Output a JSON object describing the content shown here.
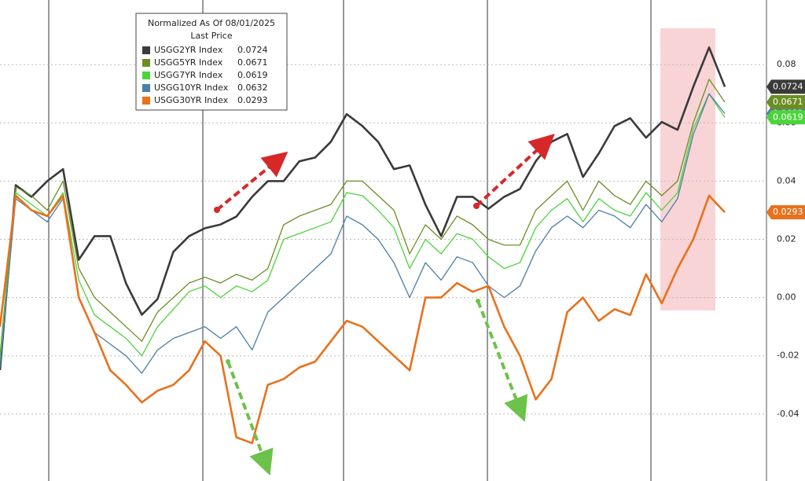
{
  "chart_data": {
    "type": "line",
    "legend_title": "Normalized As Of 08/01/2025",
    "legend_subtitle": "Last Price",
    "ylim": [
      -0.063,
      0.1022
    ],
    "yticks": [
      0.08,
      0.06,
      0.04,
      0.02,
      {
        "value": 0,
        "label": "0.00"
      },
      -0.02,
      -0.04
    ],
    "grid": true,
    "series": [
      {
        "name": "USGG2YR Index",
        "color": "#3a3a3a",
        "last_price": 0.0724,
        "values": [
          -0.0249,
          0.0386,
          0.0346,
          0.04,
          0.0441,
          0.013,
          0.0211,
          0.0211,
          0.0049,
          -0.0059,
          -0.0005,
          0.0157,
          0.0211,
          0.0238,
          0.0251,
          0.0278,
          0.0346,
          0.04,
          0.04,
          0.0468,
          0.0481,
          0.0535,
          0.063,
          0.0589,
          0.0535,
          0.0441,
          0.0454,
          0.0319,
          0.0211,
          0.0346,
          0.0346,
          0.0305,
          0.0346,
          0.0373,
          0.0468,
          0.0535,
          0.0562,
          0.0414,
          0.0495,
          0.0589,
          0.0616,
          0.0549,
          0.0603,
          0.0576,
          0.0724,
          0.0859,
          0.0724
        ]
      },
      {
        "name": "USGG5YR Index",
        "color": "#6b8e23",
        "last_price": 0.0671,
        "values": [
          -0.02,
          0.038,
          0.035,
          0.03,
          0.04,
          0.01,
          0,
          -0.005,
          -0.01,
          -0.015,
          -0.005,
          0,
          0.005,
          0.007,
          0.005,
          0.008,
          0.006,
          0.01,
          0.025,
          0.028,
          0.03,
          0.032,
          0.04,
          0.04,
          0.035,
          0.03,
          0.015,
          0.025,
          0.02,
          0.028,
          0.025,
          0.02,
          0.018,
          0.018,
          0.03,
          0.035,
          0.04,
          0.03,
          0.04,
          0.035,
          0.032,
          0.04,
          0.035,
          0.04,
          0.06,
          0.075,
          0.0671
        ]
      },
      {
        "name": "USGG7YR Index",
        "color": "#4cd43c",
        "last_price": 0.0619,
        "values": [
          -0.022,
          0.036,
          0.032,
          0.028,
          0.036,
          0.006,
          -0.006,
          -0.01,
          -0.014,
          -0.02,
          -0.01,
          -0.004,
          0.002,
          0.004,
          0,
          0.004,
          0.002,
          0.006,
          0.02,
          0.022,
          0.024,
          0.026,
          0.036,
          0.035,
          0.03,
          0.024,
          0.01,
          0.02,
          0.015,
          0.022,
          0.02,
          0.014,
          0.01,
          0.012,
          0.024,
          0.03,
          0.034,
          0.026,
          0.034,
          0.03,
          0.028,
          0.036,
          0.03,
          0.036,
          0.058,
          0.07,
          0.0619
        ]
      },
      {
        "name": "USGG10YR Index",
        "color": "#4a7fa8",
        "last_price": 0.0632,
        "values": [
          -0.024,
          0.034,
          0.03,
          0.026,
          0.034,
          0,
          -0.012,
          -0.016,
          -0.02,
          -0.026,
          -0.018,
          -0.014,
          -0.012,
          -0.01,
          -0.014,
          -0.01,
          -0.018,
          -0.005,
          0,
          0.005,
          0.01,
          0.015,
          0.028,
          0.025,
          0.02,
          0.012,
          0,
          0.012,
          0.006,
          0.014,
          0.012,
          0.004,
          0,
          0.004,
          0.016,
          0.024,
          0.028,
          0.024,
          0.03,
          0.028,
          0.024,
          0.032,
          0.026,
          0.034,
          0.056,
          0.07,
          0.0632
        ]
      },
      {
        "name": "USGG30YR Index",
        "color": "#e8711c",
        "last_price": 0.0293,
        "values": [
          -0.01,
          0.035,
          0.03,
          0.028,
          0.035,
          0,
          -0.012,
          -0.025,
          -0.03,
          -0.036,
          -0.032,
          -0.03,
          -0.025,
          -0.015,
          -0.02,
          -0.048,
          -0.05,
          -0.03,
          -0.028,
          -0.024,
          -0.022,
          -0.015,
          -0.008,
          -0.01,
          -0.015,
          -0.02,
          -0.025,
          0,
          0,
          0.005,
          0.002,
          0.004,
          -0.01,
          -0.02,
          -0.035,
          -0.028,
          -0.005,
          0,
          -0.008,
          -0.004,
          -0.006,
          0.008,
          -0.002,
          0.01,
          0.02,
          0.035,
          0.0293
        ]
      }
    ]
  }
}
